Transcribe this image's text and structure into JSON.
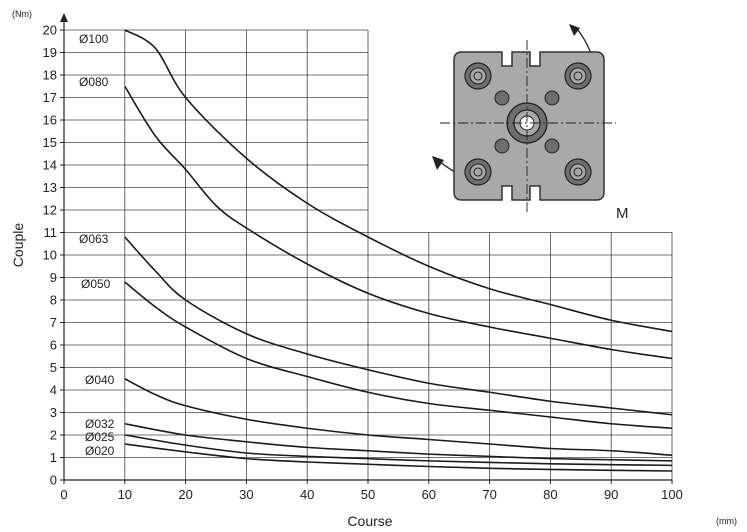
{
  "chart_data": {
    "type": "line",
    "xlabel": "Course",
    "ylabel": "Couple",
    "x_unit": "(mm)",
    "y_unit": "(Nm)",
    "xlim": [
      0,
      100
    ],
    "ylim": [
      0,
      20
    ],
    "x_ticks": [
      0,
      10,
      20,
      30,
      40,
      50,
      60,
      70,
      80,
      90,
      100
    ],
    "y_ticks": [
      0,
      1,
      2,
      3,
      4,
      5,
      6,
      7,
      8,
      9,
      10,
      11,
      12,
      13,
      14,
      15,
      16,
      17,
      18,
      19,
      20
    ],
    "grid": true,
    "series": [
      {
        "name": "Ø100",
        "x": [
          10,
          15,
          20,
          30,
          40,
          50,
          60,
          70,
          80,
          90,
          100
        ],
        "y": [
          20.0,
          19.2,
          17.0,
          14.3,
          12.3,
          10.8,
          9.5,
          8.5,
          7.8,
          7.1,
          6.6
        ]
      },
      {
        "name": "Ø080",
        "x": [
          10,
          15,
          20,
          25,
          30,
          40,
          50,
          60,
          70,
          80,
          90,
          100
        ],
        "y": [
          17.5,
          15.3,
          13.8,
          12.2,
          11.2,
          9.6,
          8.3,
          7.4,
          6.8,
          6.3,
          5.8,
          5.4
        ]
      },
      {
        "name": "Ø063",
        "x": [
          10,
          15,
          20,
          30,
          40,
          50,
          60,
          70,
          80,
          90,
          100
        ],
        "y": [
          10.8,
          9.3,
          8.0,
          6.5,
          5.6,
          4.9,
          4.3,
          3.9,
          3.5,
          3.2,
          2.9
        ]
      },
      {
        "name": "Ø050",
        "x": [
          10,
          15,
          20,
          30,
          40,
          50,
          60,
          70,
          80,
          90,
          100
        ],
        "y": [
          8.8,
          7.7,
          6.8,
          5.4,
          4.6,
          3.9,
          3.4,
          3.1,
          2.8,
          2.5,
          2.3
        ]
      },
      {
        "name": "Ø040",
        "x": [
          10,
          15,
          20,
          30,
          40,
          50,
          60,
          70,
          80,
          90,
          100
        ],
        "y": [
          4.5,
          3.8,
          3.3,
          2.7,
          2.3,
          2.0,
          1.8,
          1.6,
          1.4,
          1.3,
          1.1
        ]
      },
      {
        "name": "Ø032",
        "x": [
          10,
          20,
          30,
          40,
          50,
          60,
          70,
          80,
          90,
          100
        ],
        "y": [
          2.5,
          2.0,
          1.7,
          1.45,
          1.3,
          1.15,
          1.05,
          0.95,
          0.9,
          0.85
        ]
      },
      {
        "name": "Ø025",
        "x": [
          10,
          20,
          30,
          40,
          50,
          60,
          70,
          80,
          90,
          100
        ],
        "y": [
          2.0,
          1.55,
          1.2,
          1.05,
          0.95,
          0.85,
          0.78,
          0.72,
          0.68,
          0.65
        ]
      },
      {
        "name": "Ø020",
        "x": [
          10,
          20,
          30,
          40,
          50,
          60,
          70,
          80,
          90,
          100
        ],
        "y": [
          1.6,
          1.25,
          0.95,
          0.8,
          0.7,
          0.6,
          0.52,
          0.47,
          0.43,
          0.4
        ]
      }
    ],
    "inset_label": "M"
  },
  "colors": {
    "grid": "#444444",
    "curve": "#1a1a1a",
    "inset_fill": "#a9a9a9",
    "inset_dark": "#6e6e6e"
  }
}
